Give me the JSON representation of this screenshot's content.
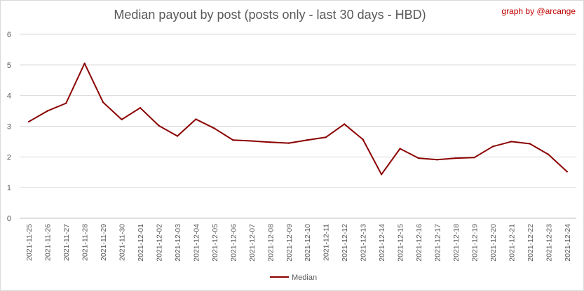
{
  "chart_data": {
    "type": "line",
    "title": "Median payout by post (posts only - last 30 days - HBD)",
    "credit": "graph by @arcange",
    "xlabel": "",
    "ylabel": "",
    "ylim": [
      0,
      6
    ],
    "yticks": [
      0,
      1,
      2,
      3,
      4,
      5,
      6
    ],
    "grid": true,
    "legend_position": "bottom",
    "categories": [
      "2021-11-25",
      "2021-11-26",
      "2021-11-27",
      "2021-11-28",
      "2021-11-29",
      "2021-11-30",
      "2021-12-01",
      "2021-12-02",
      "2021-12-03",
      "2021-12-04",
      "2021-12-05",
      "2021-12-06",
      "2021-12-07",
      "2021-12-08",
      "2021-12-09",
      "2021-12-10",
      "2021-12-11",
      "2021-12-12",
      "2021-12-13",
      "2021-12-14",
      "2021-12-15",
      "2021-12-16",
      "2021-12-17",
      "2021-12-18",
      "2021-12-19",
      "2021-12-20",
      "2021-12-21",
      "2021-12-22",
      "2021-12-23",
      "2021-12-24"
    ],
    "series": [
      {
        "name": "Median",
        "color": "#8b0000",
        "values": [
          3.15,
          3.5,
          3.75,
          5.05,
          3.78,
          3.22,
          3.6,
          3.02,
          2.68,
          3.23,
          2.93,
          2.55,
          2.52,
          2.48,
          2.45,
          2.55,
          2.64,
          3.07,
          2.57,
          1.43,
          2.27,
          1.96,
          1.91,
          1.96,
          1.98,
          2.34,
          2.5,
          2.43,
          2.08,
          1.52
        ]
      }
    ]
  }
}
